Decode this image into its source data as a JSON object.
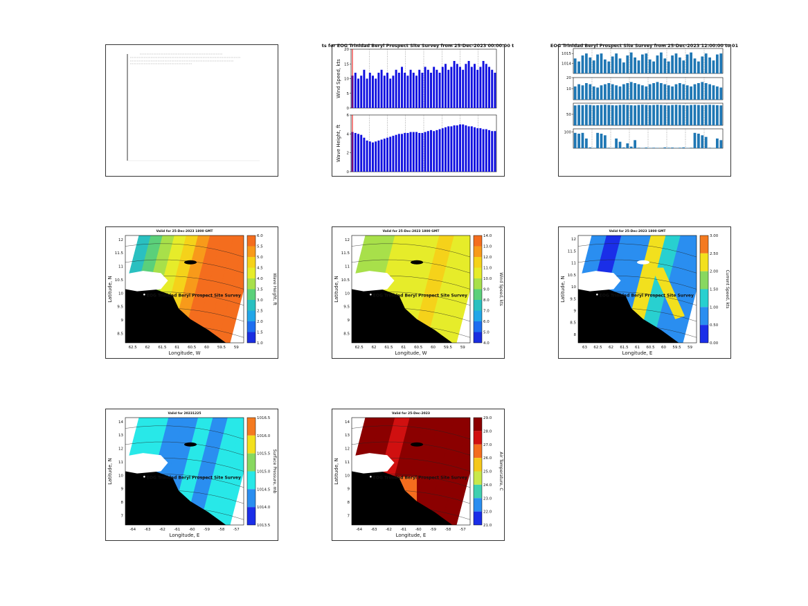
{
  "panels": [
    {
      "kind": "table"
    },
    {
      "kind": "bars",
      "title": "ts for EOG Trinidad Beryl Prospect Site Survey from 25-Dec-2023 00:00:00 t",
      "color": "#1010e0",
      "plots": [
        {
          "ylabel": "Wind Speed, kts",
          "ylim": [
            0,
            20
          ],
          "yticks": [
            0,
            5,
            10,
            15,
            20
          ],
          "values": [
            11,
            12,
            10,
            11,
            13,
            10,
            12,
            11,
            10,
            12,
            13,
            11,
            12,
            10,
            11,
            13,
            12,
            14,
            12,
            11,
            13,
            12,
            11,
            13,
            12,
            14,
            13,
            12,
            14,
            13,
            12,
            14,
            15,
            13,
            14,
            16,
            15,
            14,
            13,
            15,
            16,
            14,
            15,
            13,
            14,
            16,
            15,
            14,
            13,
            12
          ]
        },
        {
          "ylabel": "Wave Height, ft",
          "ylim": [
            0,
            6
          ],
          "yticks": [
            0,
            2,
            4,
            6
          ],
          "values": [
            4.2,
            4.1,
            4.0,
            3.9,
            3.6,
            3.3,
            3.2,
            3.1,
            3.2,
            3.3,
            3.4,
            3.5,
            3.6,
            3.7,
            3.8,
            3.9,
            4.0,
            4.0,
            4.1,
            4.1,
            4.2,
            4.2,
            4.2,
            4.1,
            4.1,
            4.2,
            4.3,
            4.4,
            4.3,
            4.4,
            4.5,
            4.6,
            4.7,
            4.8,
            4.8,
            4.9,
            4.9,
            5.0,
            5.0,
            4.9,
            4.8,
            4.8,
            4.7,
            4.6,
            4.6,
            4.5,
            4.5,
            4.4,
            4.3,
            4.3
          ]
        }
      ]
    },
    {
      "kind": "bars",
      "title": "EOG Trinidad Beryl Prospect Site Survey from 25-Dec-2023 12:00:00 to 01",
      "color": "#1f77b4",
      "plots": [
        {
          "ylim": [
            1013,
            1015.5
          ],
          "yticks": [
            1014,
            1015
          ],
          "values": [
            1014.5,
            1014.2,
            1014.8,
            1015,
            1014.6,
            1014.3,
            1014.9,
            1015,
            1014.4,
            1014.2,
            1014.7,
            1015,
            1014.5,
            1014.1,
            1014.8,
            1015.1,
            1014.6,
            1014.3,
            1014.9,
            1015,
            1014.4,
            1014.2,
            1014.8,
            1015.1,
            1014.5,
            1014.2,
            1014.8,
            1015,
            1014.6,
            1014.3,
            1014.9,
            1015.1,
            1014.5,
            1014.2,
            1014.7,
            1015,
            1014.6,
            1014.3,
            1014.9,
            1015
          ]
        },
        {
          "ylim": [
            0,
            20
          ],
          "yticks": [
            10,
            20
          ],
          "values": [
            12,
            14,
            13,
            15,
            14,
            12,
            11,
            13,
            14,
            15,
            14,
            13,
            12,
            14,
            15,
            16,
            15,
            14,
            13,
            12,
            14,
            15,
            16,
            15,
            14,
            13,
            12,
            14,
            15,
            14,
            13,
            12,
            14,
            15,
            16,
            15,
            14,
            13,
            12,
            11
          ]
        },
        {
          "ylim": [
            0,
            100
          ],
          "yticks": [
            50
          ],
          "values": [
            90,
            92,
            91,
            93,
            92,
            90,
            91,
            92,
            93,
            92,
            91,
            90,
            92,
            93,
            92,
            91,
            90,
            92,
            93,
            92,
            91,
            92,
            93,
            92,
            91,
            90,
            92,
            93,
            92,
            91,
            90,
            92,
            93,
            92,
            91,
            92,
            93,
            92,
            91,
            90
          ]
        },
        {
          "ylim": [
            0,
            120
          ],
          "yticks": [
            100
          ],
          "values": [
            95,
            90,
            95,
            60,
            5,
            2,
            95,
            90,
            80,
            3,
            2,
            60,
            40,
            5,
            30,
            10,
            50,
            3,
            2,
            4,
            2,
            3,
            2,
            1,
            5,
            3,
            4,
            2,
            3,
            5,
            2,
            3,
            95,
            90,
            80,
            70,
            3,
            2,
            60,
            50
          ]
        }
      ]
    },
    {
      "kind": "map",
      "title": "Valid for 25-Dec-2023 1800 GMT",
      "xlabel": "Longitude, W",
      "ylabel": "Latitude, N",
      "xticks": [
        "62.5",
        "62",
        "61.5",
        "61",
        "60.5",
        "60",
        "59.5",
        "59"
      ],
      "yticks": [
        "12",
        "11.5",
        "11",
        "10.5",
        "10",
        "9.5",
        "9",
        "8.5"
      ],
      "colorbar_label": "Wave Height, ft",
      "colorbar_ticks": [
        "6.0",
        "5.5",
        "5.0",
        "4.5",
        "4.0",
        "3.5",
        "3.0",
        "2.5",
        "2.0",
        "1.5",
        "1.0"
      ],
      "colorbar_colors": [
        "#f46d1e",
        "#f89a1a",
        "#f5d21a",
        "#e6ec2a",
        "#a8e04a",
        "#5bd07a",
        "#2ac0c0",
        "#22a6e8",
        "#1e6ef0",
        "#1a2ee0"
      ],
      "site": "EOG Trinidad Beryl Prospect Site Survey"
    },
    {
      "kind": "map",
      "title": "Valid for 25-Dec-2023 1800 GMT",
      "xlabel": "Longitude, W",
      "ylabel": "Latitude, N",
      "xticks": [
        "62.5",
        "62",
        "61.5",
        "61",
        "60.5",
        "60",
        "59.5",
        "59"
      ],
      "yticks": [
        "12",
        "11.5",
        "11",
        "10.5",
        "10",
        "9.5",
        "9",
        "8.5"
      ],
      "colorbar_label": "Wind Speed, kts",
      "colorbar_ticks": [
        "14.0",
        "13.0",
        "12.0",
        "11.0",
        "10.0",
        "9.0",
        "8.0",
        "7.0",
        "6.0",
        "5.0",
        "4.0"
      ],
      "colorbar_colors": [
        "#f46d1e",
        "#f89a1a",
        "#f5d21a",
        "#e6ec2a",
        "#a8e04a",
        "#5bd07a",
        "#2ac0c0",
        "#22a6e8",
        "#1e6ef0",
        "#1a2ee0"
      ],
      "site": "EOG Trinidad Beryl Prospect Site Survey"
    },
    {
      "kind": "map",
      "title": "Valid for 25-Dec-2023 1800 GMT",
      "xlabel": "Longitude, E",
      "ylabel": "Latitude, N",
      "xticks": [
        "63",
        "62.5",
        "62",
        "61.5",
        "61",
        "60.5",
        "60",
        "59.5",
        "59"
      ],
      "yticks": [
        "12",
        "11.5",
        "11",
        "10.5",
        "10",
        "9.5",
        "9",
        "8.5",
        "8"
      ],
      "colorbar_label": "Current Speed, kts",
      "colorbar_ticks": [
        "3.00",
        "2.50",
        "2.00",
        "1.50",
        "1.00",
        "0.50",
        "0.00"
      ],
      "colorbar_colors": [
        "#f47a20",
        "#f2e01e",
        "#88d860",
        "#28d0d0",
        "#2a8ef0",
        "#1a2ee8"
      ],
      "site": "EOG Trinidad Beryl Prospect Site Survey"
    },
    {
      "kind": "map",
      "title": "Valid for 20231225",
      "xlabel": "Longitude, E",
      "ylabel": "Latitude, N",
      "xticks": [
        "-64",
        "-63",
        "-62",
        "-61",
        "-60",
        "-59",
        "-58",
        "-57"
      ],
      "yticks": [
        "14",
        "13",
        "12",
        "11",
        "10",
        "9",
        "8",
        "7"
      ],
      "colorbar_label": "Surface Pressure, mb",
      "colorbar_ticks": [
        "1016.5",
        "1016.0",
        "1015.5",
        "1015.0",
        "1014.5",
        "1014.0",
        "1013.5"
      ],
      "colorbar_colors": [
        "#f47a20",
        "#f2e01e",
        "#88d860",
        "#28e8e8",
        "#2a8ef0",
        "#1a2ee8"
      ],
      "site": "EOG Trinidad Beryl Prospect Site Survey"
    },
    {
      "kind": "map",
      "title": "Valid for 25-Dec-2023",
      "xlabel": "Longitude, E",
      "ylabel": "Latitude, N",
      "xticks": [
        "-64",
        "-63",
        "-62",
        "-61",
        "-60",
        "-59",
        "-58",
        "-57"
      ],
      "yticks": [
        "14",
        "13",
        "12",
        "11",
        "10",
        "9",
        "8",
        "7"
      ],
      "colorbar_label": "Air Temperature, C",
      "colorbar_ticks": [
        "29.0",
        "28.0",
        "27.0",
        "26.0",
        "25.0",
        "24.0",
        "23.0",
        "22.0",
        "21.0"
      ],
      "colorbar_colors": [
        "#8b0000",
        "#d01010",
        "#f46d1e",
        "#f5c81a",
        "#c8e84a",
        "#40d0b0",
        "#2a8ef0",
        "#1a2ee8"
      ],
      "site": "EOG Trinidad Beryl Prospect Site Survey"
    }
  ]
}
